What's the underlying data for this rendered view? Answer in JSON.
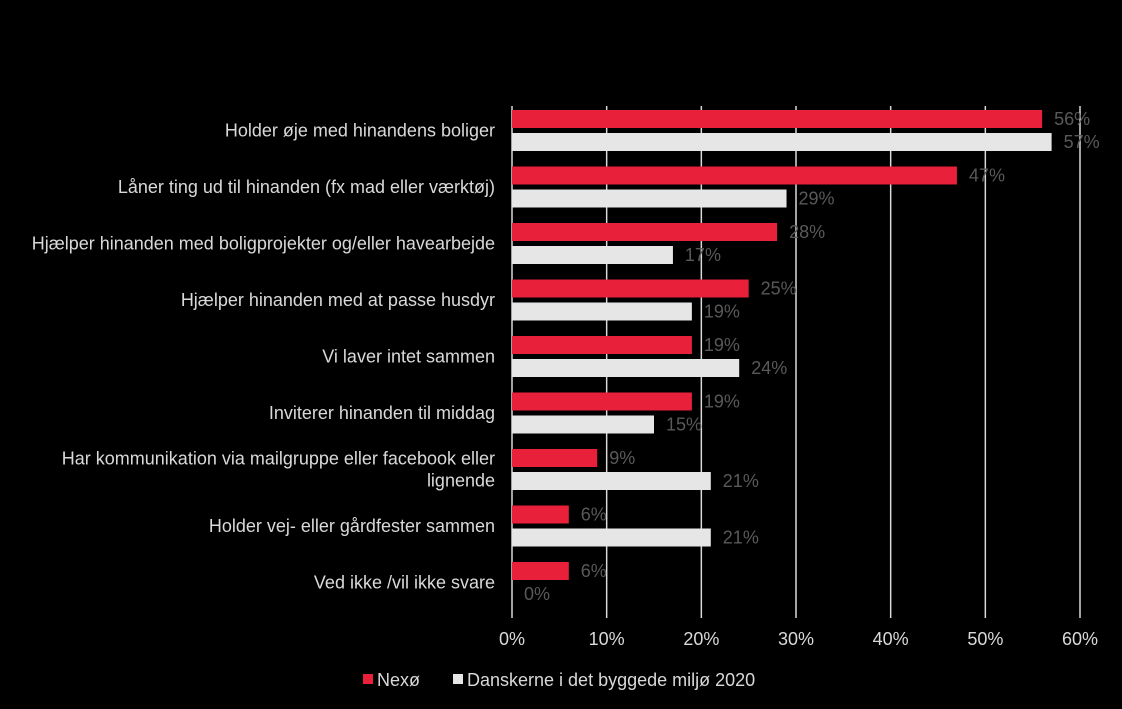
{
  "chart_data": {
    "type": "bar",
    "orientation": "horizontal",
    "categories": [
      [
        "Holder øje med hinandens boliger"
      ],
      [
        "Låner ting ud til hinanden (fx mad eller værktøj)"
      ],
      [
        "Hjælper hinanden med boligprojekter og/eller havearbejde"
      ],
      [
        "Hjælper hinanden med at passe husdyr"
      ],
      [
        "Vi laver intet sammen"
      ],
      [
        "Inviterer hinanden til middag"
      ],
      [
        "Har kommunikation via mailgruppe eller facebook eller",
        "lignende"
      ],
      [
        "Holder vej- eller gårdfester sammen"
      ],
      [
        "Ved ikke /vil ikke svare"
      ]
    ],
    "series": [
      {
        "name": "Nexø",
        "color": "#e8203a",
        "values": [
          56,
          47,
          28,
          25,
          19,
          19,
          9,
          6,
          6
        ],
        "labels": [
          "56%",
          "47%",
          "28%",
          "25%",
          "19%",
          "19%",
          "9%",
          "6%",
          "6%"
        ]
      },
      {
        "name": "Danskerne i det byggede miljø 2020",
        "color": "#e6e6e6",
        "values": [
          57,
          29,
          17,
          19,
          24,
          15,
          21,
          21,
          0
        ],
        "labels": [
          "57%",
          "29%",
          "17%",
          "19%",
          "24%",
          "15%",
          "21%",
          "21%",
          "0%"
        ]
      }
    ],
    "xlim": [
      0,
      60
    ],
    "x_ticks": [
      0,
      10,
      20,
      30,
      40,
      50,
      60
    ],
    "x_tick_labels": [
      "0%",
      "10%",
      "20%",
      "30%",
      "40%",
      "50%",
      "60%"
    ],
    "grid": "vertical",
    "legend": "bottom",
    "title": "",
    "xlabel": "",
    "ylabel": ""
  },
  "colors": {
    "background": "#000000",
    "gridline": "#d9d9d9",
    "text": "#d9d9d9",
    "data_label": "#595959"
  }
}
